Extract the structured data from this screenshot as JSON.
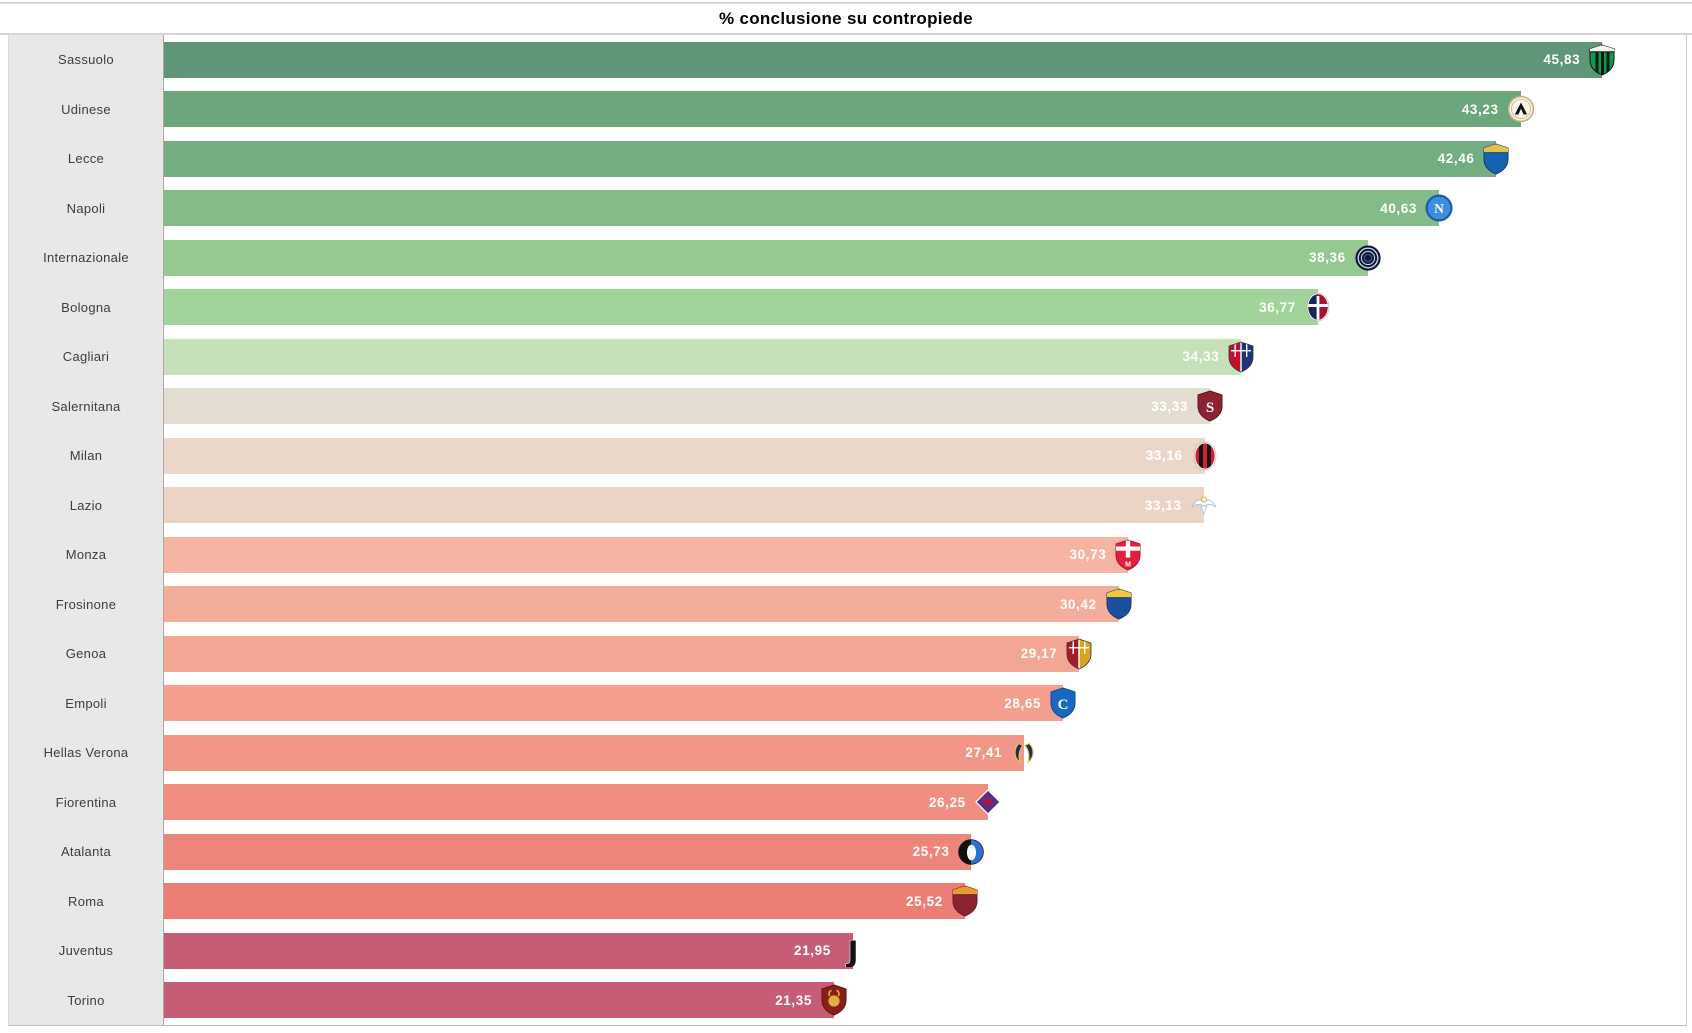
{
  "title": "% conclusione su contropiede",
  "chart_data": {
    "type": "bar",
    "orientation": "horizontal",
    "title": "% conclusione su contropiede",
    "x_axis": {
      "min": 0,
      "max_estimated": 48.5,
      "gridlines": false,
      "ticks_visible": false
    },
    "decimal_separator": ",",
    "legend": "none",
    "categories": [
      "Sassuolo",
      "Udinese",
      "Lecce",
      "Napoli",
      "Internazionale",
      "Bologna",
      "Cagliari",
      "Salernitana",
      "Milan",
      "Lazio",
      "Monza",
      "Frosinone",
      "Genoa",
      "Empoli",
      "Hellas Verona",
      "Fiorentina",
      "Atalanta",
      "Roma",
      "Juventus",
      "Torino"
    ],
    "values": [
      45.83,
      43.23,
      42.46,
      40.63,
      38.36,
      36.77,
      34.33,
      33.33,
      33.16,
      33.13,
      30.73,
      30.42,
      29.17,
      28.65,
      27.41,
      26.25,
      25.73,
      25.52,
      21.95,
      21.35
    ],
    "value_labels": [
      "45,83",
      "43,23",
      "42,46",
      "40,63",
      "38,36",
      "36,77",
      "34,33",
      "33,33",
      "33,16",
      "33,13",
      "30,73",
      "30,42",
      "29,17",
      "28,65",
      "27,41",
      "26,25",
      "25,73",
      "25,52",
      "21,95",
      "21,35"
    ],
    "bar_colors": [
      "#5f9677",
      "#6ba67d",
      "#74ad81",
      "#85bb89",
      "#96c892",
      "#a0d49b",
      "#c6e1b9",
      "#e3dcd0",
      "#ebd7c9",
      "#ebd4c6",
      "#f6b4a4",
      "#f5ad9b",
      "#f4a694",
      "#f49f8d",
      "#f29787",
      "#f08e81",
      "#ee857b",
      "#ed7e76",
      "#c75c75",
      "#c75c75"
    ],
    "value_label_color": "#ffffff",
    "label_panel_bg": "#e9e8e6",
    "crests": [
      {
        "id": "sassuolo",
        "shape": "shield-stripes",
        "colors": [
          "#0a9b4d",
          "#141414",
          "#f5f5f0"
        ],
        "letter": ""
      },
      {
        "id": "udinese",
        "shape": "circle-chevron",
        "colors": [
          "#f8f4ea",
          "#c9b282",
          "#111111"
        ],
        "letter": ""
      },
      {
        "id": "lecce",
        "shape": "shield-chief",
        "colors": [
          "#1465ae",
          "#e3c14f",
          "#123a6e"
        ],
        "letter": ""
      },
      {
        "id": "napoli",
        "shape": "circle-letter",
        "colors": [
          "#3c8ed9",
          "#1c5cae",
          "#ffffff"
        ],
        "letter": "N"
      },
      {
        "id": "internazionale",
        "shape": "circle-rings",
        "colors": [
          "#0d1737",
          "#c8cfdd",
          "#31508f"
        ],
        "letter": ""
      },
      {
        "id": "bologna",
        "shape": "oval-split",
        "colors": [
          "#16275d",
          "#a31434",
          "#ffffff"
        ],
        "letter": ""
      },
      {
        "id": "cagliari",
        "shape": "shield-split",
        "colors": [
          "#c0122f",
          "#1c357b",
          "#ffffff"
        ],
        "letter": ""
      },
      {
        "id": "salernitana",
        "shape": "shield-letter",
        "colors": [
          "#8c2332",
          "#ffffff",
          "#5a161f"
        ],
        "letter": "S"
      },
      {
        "id": "milan",
        "shape": "oval-stripes",
        "colors": [
          "#d41f30",
          "#141414",
          "#f5f5f5"
        ],
        "letter": ""
      },
      {
        "id": "lazio",
        "shape": "eagle",
        "colors": [
          "#fdfdfb",
          "#9cc3e0",
          "#d4a017"
        ],
        "letter": ""
      },
      {
        "id": "monza",
        "shape": "shield-cross",
        "colors": [
          "#e0203c",
          "#ffffff",
          "#b0152e"
        ],
        "letter": ""
      },
      {
        "id": "frosinone",
        "shape": "shield-chief",
        "colors": [
          "#1c4fa0",
          "#f0c83c",
          "#123a6e"
        ],
        "letter": ""
      },
      {
        "id": "genoa",
        "shape": "shield-split",
        "colors": [
          "#a01e28",
          "#d9a520",
          "#ffffff"
        ],
        "letter": ""
      },
      {
        "id": "empoli",
        "shape": "shield-letter",
        "colors": [
          "#1668c0",
          "#ffffff",
          "#0e4a8e"
        ],
        "letter": "C"
      },
      {
        "id": "hellas-verona",
        "shape": "verona-dogs",
        "colors": [
          "#1b2d66",
          "#f0c83c",
          "#ffffff"
        ],
        "letter": ""
      },
      {
        "id": "fiorentina",
        "shape": "diamond",
        "colors": [
          "#5b2c86",
          "#c01030",
          "#ffffff"
        ],
        "letter": ""
      },
      {
        "id": "atalanta",
        "shape": "circle-split",
        "colors": [
          "#111111",
          "#2a6fd4",
          "#f8f8f8"
        ],
        "letter": ""
      },
      {
        "id": "roma",
        "shape": "shield-chief",
        "colors": [
          "#8a2332",
          "#e89b2e",
          "#6e1a28"
        ],
        "letter": ""
      },
      {
        "id": "juventus",
        "shape": "glyph-j",
        "colors": [
          "#121212",
          "#ffffff",
          "#121212"
        ],
        "letter": "J"
      },
      {
        "id": "torino",
        "shape": "shield-bull",
        "colors": [
          "#8a1f1a",
          "#e0b040",
          "#5c1410"
        ],
        "letter": ""
      }
    ]
  }
}
